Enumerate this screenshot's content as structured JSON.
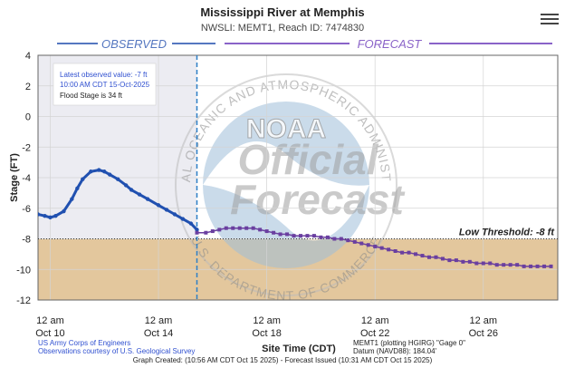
{
  "header": {
    "title": "Mississippi River at Memphis",
    "subtitle": "NWSLI: MEMT1, Reach ID: 7474830"
  },
  "menu_icon": "hamburger-menu-icon",
  "colors": {
    "observed": "#2050b0",
    "forecast": "#6a3fa0",
    "low_band": "#e3c79d",
    "obs_background": "#ececf2",
    "plot_border": "#666666",
    "cutoff_line": "#2d7fc6",
    "watermark": "#a8a8a8",
    "info_text": "#3050d0",
    "label_observed": "#5577c0",
    "label_forecast": "#8a63c8"
  },
  "labels": {
    "observed": "OBSERVED",
    "forecast": "FORECAST"
  },
  "info_box": {
    "latest_line1": "Latest observed value: -7 ft",
    "latest_line2": "10:00 AM CDT 15-Oct-2025",
    "flood_stage": "Flood Stage is 34 ft"
  },
  "watermark": {
    "logo_text": "NOAA",
    "line1": "Official",
    "line2": "Forecast",
    "ring_top": "NATIONAL OCEANIC AND ATMOSPHERIC ADMINISTRATION",
    "ring_bottom": "U.S. DEPARTMENT OF COMMERCE"
  },
  "footer": {
    "usace": "US Army Corps of Engineers",
    "usgs": "Observations courtesy of U.S. Geological Survey",
    "gage": "MEMT1 (plotting HGIRG) \"Gage 0\"",
    "datum": "Datum (NAVD88): 184.04'",
    "created": "Graph Created: (10:56 AM CDT Oct 15 2025) - Forecast Issued (10:31 AM CDT Oct 15 2025)"
  },
  "chart_data": {
    "type": "line",
    "title": "Mississippi River at Memphis",
    "xlabel": "Site Time (CDT)",
    "ylabel": "Stage (FT)",
    "x_units": "days since Oct 9 2025 00:00 CDT",
    "xlim": [
      0.55,
      19.75
    ],
    "ylim": [
      -12,
      4
    ],
    "y_ticks": [
      4,
      2,
      0,
      -2,
      -4,
      -6,
      -8,
      -10,
      -12
    ],
    "x_ticks": [
      {
        "x": 1,
        "top": "12 am",
        "bottom": "Oct 10"
      },
      {
        "x": 5,
        "top": "12 am",
        "bottom": "Oct 14"
      },
      {
        "x": 9,
        "top": "12 am",
        "bottom": "Oct 18"
      },
      {
        "x": 13,
        "top": "12 am",
        "bottom": "Oct 22"
      },
      {
        "x": 17,
        "top": "12 am",
        "bottom": "Oct 26"
      }
    ],
    "forecast_start": 6.42,
    "low_threshold": {
      "value": -8,
      "label": "Low Threshold: -8 ft"
    },
    "series": [
      {
        "name": "Observed",
        "x": [
          0.55,
          0.8,
          1.0,
          1.2,
          1.5,
          1.8,
          2.0,
          2.2,
          2.5,
          2.8,
          3.0,
          3.2,
          3.5,
          3.8,
          4.0,
          4.3,
          4.6,
          5.0,
          5.3,
          5.6,
          5.9,
          6.2,
          6.42
        ],
        "values": [
          -6.4,
          -6.5,
          -6.6,
          -6.5,
          -6.2,
          -5.4,
          -4.7,
          -4.1,
          -3.6,
          -3.5,
          -3.6,
          -3.8,
          -4.1,
          -4.5,
          -4.8,
          -5.1,
          -5.4,
          -5.8,
          -6.1,
          -6.4,
          -6.7,
          -7.0,
          -7.4
        ]
      },
      {
        "name": "Forecast",
        "x": [
          6.42,
          6.75,
          7.0,
          7.25,
          7.5,
          7.75,
          8.0,
          8.25,
          8.5,
          8.75,
          9.0,
          9.25,
          9.5,
          9.75,
          10.0,
          10.25,
          10.5,
          10.75,
          11.0,
          11.25,
          11.5,
          11.75,
          12.0,
          12.25,
          12.5,
          12.75,
          13.0,
          13.25,
          13.5,
          13.75,
          14.0,
          14.25,
          14.5,
          14.75,
          15.0,
          15.25,
          15.5,
          15.75,
          16.0,
          16.25,
          16.5,
          16.75,
          17.0,
          17.25,
          17.5,
          17.75,
          18.0,
          18.25,
          18.5,
          18.75,
          19.0,
          19.25,
          19.5
        ],
        "values": [
          -7.6,
          -7.6,
          -7.5,
          -7.4,
          -7.3,
          -7.3,
          -7.3,
          -7.3,
          -7.3,
          -7.4,
          -7.5,
          -7.6,
          -7.7,
          -7.7,
          -7.8,
          -7.8,
          -7.8,
          -7.8,
          -7.9,
          -7.9,
          -8.0,
          -8.0,
          -8.1,
          -8.2,
          -8.3,
          -8.4,
          -8.5,
          -8.6,
          -8.7,
          -8.8,
          -8.9,
          -8.9,
          -9.0,
          -9.1,
          -9.2,
          -9.2,
          -9.3,
          -9.4,
          -9.4,
          -9.5,
          -9.5,
          -9.6,
          -9.6,
          -9.6,
          -9.7,
          -9.7,
          -9.7,
          -9.7,
          -9.8,
          -9.8,
          -9.8,
          -9.8,
          -9.8
        ]
      }
    ]
  }
}
